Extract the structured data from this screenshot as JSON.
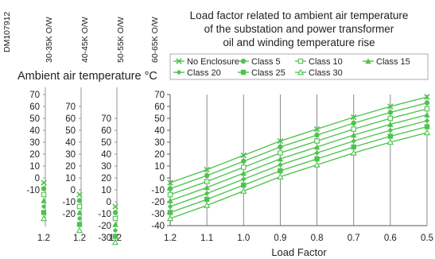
{
  "doc_id": "DM107912",
  "chart_data": {
    "type": "line",
    "title": [
      "Load factor related to ambient air temperature",
      "of the substation and power transformer",
      "oil and winding temperature rise"
    ],
    "xlabel": "Load Factor",
    "ylabel": "Ambient air temperature °C",
    "x_ticks": [
      "1.2",
      "1.1",
      "1.0",
      "0.9",
      "0.8",
      "0.7",
      "0.6",
      "0.5"
    ],
    "x": [
      1.2,
      1.1,
      1.0,
      0.9,
      0.8,
      0.7,
      0.6,
      0.5
    ],
    "xlim": [
      1.2,
      0.5
    ],
    "ylim": [
      -40,
      70
    ],
    "y_ticks": [
      70,
      60,
      50,
      40,
      30,
      20,
      10,
      0,
      -10,
      -20,
      -30,
      -40
    ],
    "grid": "vertical",
    "legend_position": "top",
    "series_color": "#4cc44c",
    "series": [
      {
        "name": "No Enclosure",
        "marker": "x",
        "values": [
          -4,
          7,
          19,
          31,
          41,
          51,
          60,
          68
        ]
      },
      {
        "name": "Class 5",
        "marker": "circle",
        "values": [
          -9,
          2,
          14,
          26,
          36,
          46,
          55,
          63
        ]
      },
      {
        "name": "Class 10",
        "marker": "square-open",
        "values": [
          -14,
          -3,
          9,
          21,
          31,
          41,
          50,
          58
        ]
      },
      {
        "name": "Class 15",
        "marker": "triangle",
        "values": [
          -19,
          -8,
          4,
          16,
          26,
          36,
          45,
          53
        ]
      },
      {
        "name": "Class 20",
        "marker": "diamond",
        "values": [
          -24,
          -13,
          -1,
          11,
          21,
          31,
          40,
          48
        ]
      },
      {
        "name": "Class 25",
        "marker": "square",
        "values": [
          -29,
          -18,
          -6,
          6,
          16,
          26,
          35,
          43
        ]
      },
      {
        "name": "Class 30",
        "marker": "triangle-open",
        "values": [
          -34,
          -23,
          -11,
          1,
          11,
          21,
          30,
          38
        ]
      }
    ],
    "aux_axes": [
      {
        "label": "30-35K O/W",
        "ticks": [
          "70",
          "60",
          "50",
          "40",
          "30",
          "20",
          "10",
          "0",
          "-10"
        ],
        "start_offset": 0
      },
      {
        "label": "40-45K O/W",
        "ticks": [
          "70",
          "60",
          "50",
          "40",
          "30",
          "20",
          "10",
          "0",
          "-10",
          "-20"
        ],
        "start_offset": 10
      },
      {
        "label": "50-55K O/W",
        "ticks": [
          "70",
          "60",
          "50",
          "40",
          "30",
          "20",
          "10",
          "0",
          "-10",
          "-20",
          "-30"
        ],
        "start_offset": 20
      },
      {
        "label": "60-65K O/W",
        "ticks": [],
        "start_offset": 30
      }
    ],
    "aux_x_tick": "1.2"
  }
}
